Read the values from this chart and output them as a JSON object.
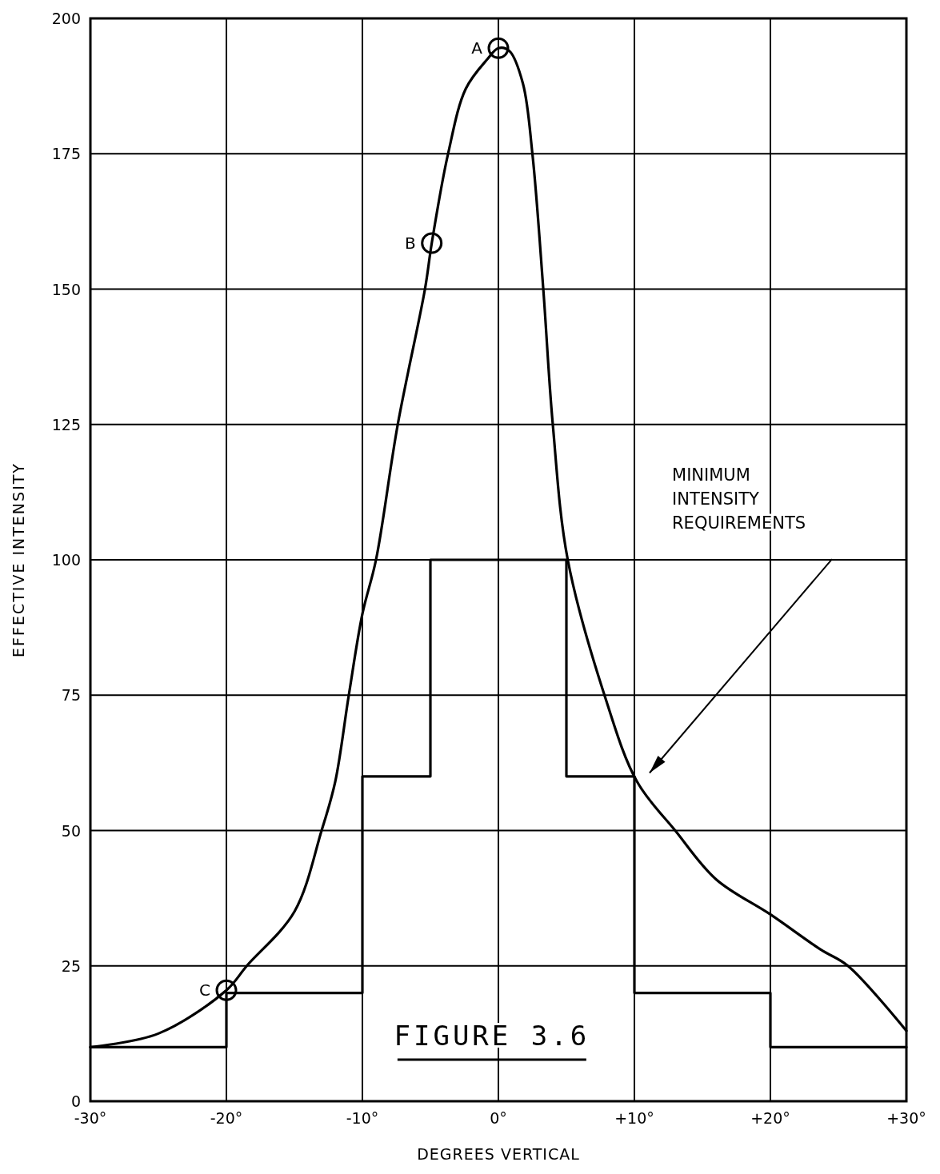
{
  "chart_data": {
    "type": "line",
    "title": "FIGURE 3.6",
    "xlabel": "DEGREES VERTICAL",
    "ylabel": "EFFECTIVE INTENSITY",
    "xlim": [
      -30,
      30
    ],
    "ylim": [
      0,
      200
    ],
    "xticks": [
      {
        "value": -30,
        "label": "-30°"
      },
      {
        "value": -20,
        "label": "-20°"
      },
      {
        "value": -10,
        "label": "-10°"
      },
      {
        "value": 0,
        "label": "0°"
      },
      {
        "value": 10,
        "label": "+10°"
      },
      {
        "value": 20,
        "label": "+20°"
      },
      {
        "value": 30,
        "label": "+30°"
      }
    ],
    "yticks": [
      0,
      25,
      50,
      75,
      100,
      125,
      150,
      175,
      200
    ],
    "grid": true,
    "series": [
      {
        "color": "#000000",
        "x": [
          -30,
          -25,
          -20,
          -18.5,
          -15,
          -13,
          -12,
          -11,
          -10,
          -9,
          -7.4,
          -5.4,
          -4.9,
          -3.7,
          -2.4,
          -0.8,
          0,
          0.8,
          1.8,
          2.5,
          3.3,
          4,
          5.1,
          7.8,
          10.2,
          13,
          16,
          20,
          23.7,
          25.7,
          30
        ],
        "values": [
          10,
          12.5,
          20.5,
          25,
          35,
          50,
          59,
          75,
          90,
          100,
          125,
          150,
          158.5,
          175,
          187,
          192.5,
          194.5,
          194,
          188,
          175,
          150,
          125,
          100,
          75,
          59,
          50,
          41,
          34.5,
          28,
          25,
          13
        ]
      },
      {
        "type": "step",
        "color": "#000000",
        "x": [
          -30,
          -20,
          -10,
          -5,
          5,
          10,
          20,
          30
        ],
        "values": [
          10,
          20,
          60,
          100,
          60,
          20,
          10,
          10
        ]
      },
      {
        "type": "scatter",
        "color": "#000000",
        "marker": "circle",
        "x": [
          0,
          -4.9,
          -20
        ],
        "values": [
          194.5,
          158.5,
          20.5
        ]
      }
    ],
    "annotations": [
      {
        "text": "A",
        "x": 0,
        "y": 194.5
      },
      {
        "text": "B",
        "x": -4.9,
        "y": 158.5
      },
      {
        "text": "C",
        "x": -20,
        "y": 20.5
      },
      "MINIMUM INTENSITY REQUIREMENTS"
    ]
  }
}
